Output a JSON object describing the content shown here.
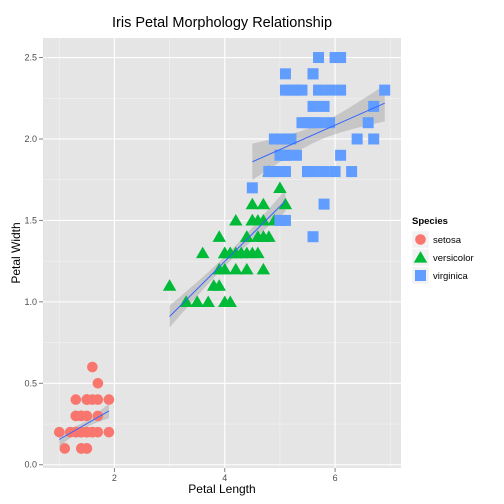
{
  "chart_data": {
    "type": "scatter",
    "title": "Iris Petal Morphology Relationship",
    "xlabel": "Petal Length",
    "ylabel": "Petal Width",
    "xlim": [
      0.705,
      7.195
    ],
    "ylim": [
      -0.02,
      2.62
    ],
    "x_ticks": [
      2,
      4,
      6
    ],
    "x_tick_labels": [
      "2",
      "4",
      "6"
    ],
    "y_ticks": [
      0.0,
      0.5,
      1.0,
      1.5,
      2.0,
      2.5
    ],
    "y_tick_labels": [
      "0.0",
      "0.5",
      "1.0",
      "1.5",
      "2.0",
      "2.5"
    ],
    "grid": true,
    "legend": {
      "title": "Species",
      "position": "right"
    },
    "series": [
      {
        "name": "setosa",
        "color": "#F8766D",
        "shape": "circle",
        "trend": {
          "x": [
            1.0,
            1.9
          ],
          "y": [
            0.155,
            0.33
          ],
          "se": 0.04
        },
        "points": [
          [
            1.4,
            0.2
          ],
          [
            1.4,
            0.2
          ],
          [
            1.3,
            0.2
          ],
          [
            1.5,
            0.2
          ],
          [
            1.4,
            0.2
          ],
          [
            1.7,
            0.4
          ],
          [
            1.4,
            0.3
          ],
          [
            1.5,
            0.2
          ],
          [
            1.4,
            0.2
          ],
          [
            1.5,
            0.1
          ],
          [
            1.5,
            0.2
          ],
          [
            1.6,
            0.2
          ],
          [
            1.4,
            0.1
          ],
          [
            1.1,
            0.1
          ],
          [
            1.2,
            0.2
          ],
          [
            1.5,
            0.4
          ],
          [
            1.3,
            0.4
          ],
          [
            1.4,
            0.3
          ],
          [
            1.7,
            0.3
          ],
          [
            1.5,
            0.3
          ],
          [
            1.7,
            0.2
          ],
          [
            1.5,
            0.4
          ],
          [
            1.0,
            0.2
          ],
          [
            1.7,
            0.5
          ],
          [
            1.9,
            0.2
          ],
          [
            1.6,
            0.2
          ],
          [
            1.6,
            0.4
          ],
          [
            1.5,
            0.2
          ],
          [
            1.4,
            0.2
          ],
          [
            1.6,
            0.2
          ],
          [
            1.6,
            0.2
          ],
          [
            1.5,
            0.4
          ],
          [
            1.5,
            0.1
          ],
          [
            1.4,
            0.2
          ],
          [
            1.5,
            0.2
          ],
          [
            1.2,
            0.2
          ],
          [
            1.3,
            0.2
          ],
          [
            1.4,
            0.1
          ],
          [
            1.3,
            0.2
          ],
          [
            1.5,
            0.2
          ],
          [
            1.3,
            0.3
          ],
          [
            1.3,
            0.3
          ],
          [
            1.3,
            0.2
          ],
          [
            1.6,
            0.6
          ],
          [
            1.9,
            0.4
          ],
          [
            1.4,
            0.3
          ],
          [
            1.6,
            0.2
          ],
          [
            1.4,
            0.2
          ],
          [
            1.5,
            0.2
          ],
          [
            1.4,
            0.2
          ]
        ]
      },
      {
        "name": "versicolor",
        "color": "#00BA38",
        "shape": "triangle",
        "trend": {
          "x": [
            3.0,
            5.1
          ],
          "y": [
            0.91,
            1.62
          ],
          "se": 0.06
        },
        "points": [
          [
            4.7,
            1.4
          ],
          [
            4.5,
            1.5
          ],
          [
            4.9,
            1.5
          ],
          [
            4.0,
            1.3
          ],
          [
            4.6,
            1.5
          ],
          [
            4.5,
            1.3
          ],
          [
            4.7,
            1.6
          ],
          [
            3.3,
            1.0
          ],
          [
            4.6,
            1.3
          ],
          [
            3.9,
            1.4
          ],
          [
            3.5,
            1.0
          ],
          [
            4.2,
            1.5
          ],
          [
            4.0,
            1.0
          ],
          [
            4.7,
            1.4
          ],
          [
            3.6,
            1.3
          ],
          [
            4.4,
            1.4
          ],
          [
            4.5,
            1.5
          ],
          [
            4.1,
            1.0
          ],
          [
            4.5,
            1.5
          ],
          [
            3.9,
            1.1
          ],
          [
            4.8,
            1.8
          ],
          [
            4.0,
            1.3
          ],
          [
            4.9,
            1.5
          ],
          [
            4.7,
            1.2
          ],
          [
            4.3,
            1.3
          ],
          [
            4.4,
            1.4
          ],
          [
            4.8,
            1.4
          ],
          [
            5.0,
            1.7
          ],
          [
            4.5,
            1.5
          ],
          [
            3.5,
            1.0
          ],
          [
            3.8,
            1.1
          ],
          [
            3.7,
            1.0
          ],
          [
            3.9,
            1.2
          ],
          [
            5.1,
            1.6
          ],
          [
            4.5,
            1.5
          ],
          [
            4.5,
            1.6
          ],
          [
            4.7,
            1.5
          ],
          [
            4.4,
            1.3
          ],
          [
            4.1,
            1.3
          ],
          [
            4.0,
            1.3
          ],
          [
            4.4,
            1.2
          ],
          [
            4.6,
            1.4
          ],
          [
            4.0,
            1.2
          ],
          [
            3.3,
            1.0
          ],
          [
            4.2,
            1.3
          ],
          [
            4.2,
            1.2
          ],
          [
            4.2,
            1.3
          ],
          [
            4.3,
            1.3
          ],
          [
            3.0,
            1.1
          ],
          [
            4.1,
            1.3
          ]
        ]
      },
      {
        "name": "virginica",
        "color": "#619CFF",
        "shape": "square",
        "trend": {
          "x": [
            4.5,
            6.9
          ],
          "y": [
            1.86,
            2.22
          ],
          "se": 0.1
        },
        "points": [
          [
            6.0,
            2.5
          ],
          [
            5.1,
            1.9
          ],
          [
            5.9,
            2.1
          ],
          [
            5.6,
            1.8
          ],
          [
            5.8,
            2.2
          ],
          [
            6.6,
            2.1
          ],
          [
            4.5,
            1.7
          ],
          [
            6.3,
            1.8
          ],
          [
            5.8,
            1.8
          ],
          [
            6.1,
            2.5
          ],
          [
            5.1,
            2.0
          ],
          [
            5.3,
            1.9
          ],
          [
            5.5,
            2.1
          ],
          [
            5.0,
            2.0
          ],
          [
            5.1,
            2.4
          ],
          [
            5.3,
            2.3
          ],
          [
            5.5,
            1.8
          ],
          [
            6.7,
            2.2
          ],
          [
            6.9,
            2.3
          ],
          [
            5.0,
            1.5
          ],
          [
            5.7,
            2.3
          ],
          [
            4.9,
            2.0
          ],
          [
            6.7,
            2.0
          ],
          [
            4.9,
            1.8
          ],
          [
            5.7,
            2.1
          ],
          [
            6.0,
            1.8
          ],
          [
            4.8,
            1.8
          ],
          [
            4.9,
            1.8
          ],
          [
            5.6,
            2.1
          ],
          [
            5.8,
            1.6
          ],
          [
            6.1,
            1.9
          ],
          [
            6.4,
            2.0
          ],
          [
            5.6,
            2.2
          ],
          [
            5.1,
            1.5
          ],
          [
            5.6,
            1.4
          ],
          [
            6.1,
            2.3
          ],
          [
            5.6,
            2.4
          ],
          [
            5.5,
            1.8
          ],
          [
            4.8,
            1.8
          ],
          [
            5.4,
            2.1
          ],
          [
            5.6,
            2.4
          ],
          [
            5.1,
            2.3
          ],
          [
            5.1,
            1.9
          ],
          [
            5.9,
            2.3
          ],
          [
            5.7,
            2.5
          ],
          [
            5.2,
            2.3
          ],
          [
            5.0,
            1.9
          ],
          [
            5.2,
            2.0
          ],
          [
            5.4,
            2.3
          ],
          [
            5.1,
            1.8
          ]
        ]
      }
    ]
  }
}
